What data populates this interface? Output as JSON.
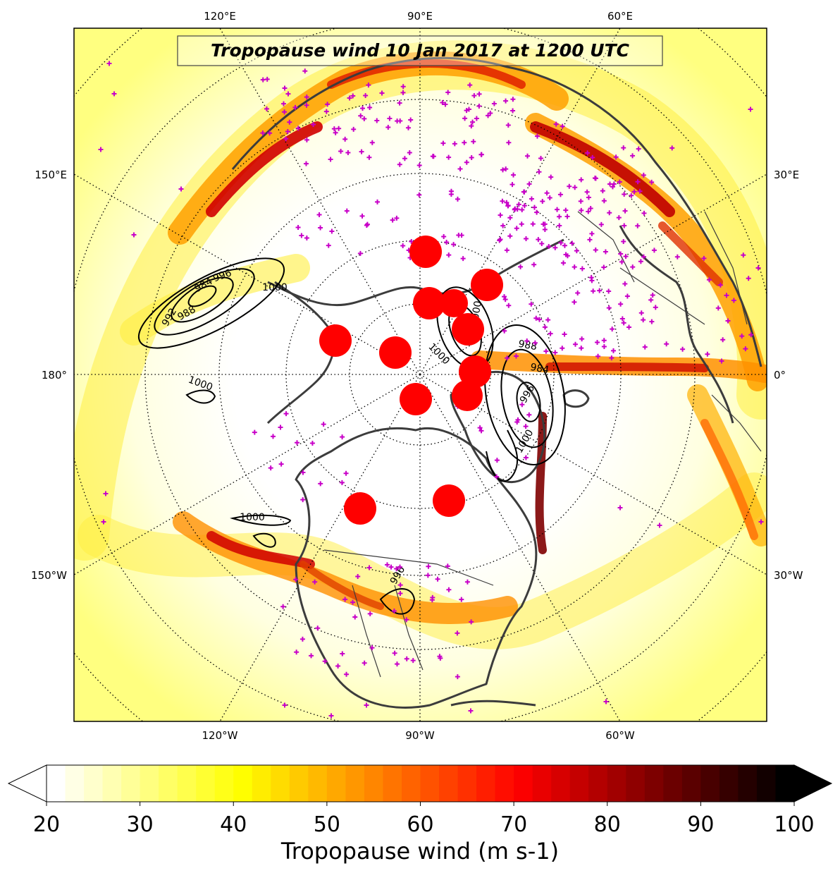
{
  "map": {
    "title": "Tropopause wind 10 Jan 2017 at 1200 UTC",
    "projection": "north-polar-stereographic",
    "central_longitude": -90,
    "lon_labels": {
      "top": [
        "120°E",
        "90°E",
        "60°E"
      ],
      "bottom": [
        "120°W",
        "90°W",
        "60°W"
      ],
      "left": [
        "150°E",
        "180°",
        "150°W"
      ],
      "right": [
        "30°E",
        "0°",
        "30°W"
      ]
    },
    "colors": {
      "coastline": "#3c3c3c",
      "graticule": "#000000",
      "station_marker": "#c800c8",
      "feature_circle": "#ff0000",
      "contour": "#000000"
    }
  },
  "colorbar": {
    "label": "Tropopause wind (m s-1)",
    "ticks": [
      "20",
      "30",
      "40",
      "50",
      "60",
      "70",
      "80",
      "90",
      "100"
    ],
    "min": 20,
    "max": 100,
    "extend": "both",
    "colormap": "hot_r"
  },
  "contour_labels": [
    "996",
    "984",
    "1000",
    "992",
    "988",
    "1000",
    "1000",
    "996",
    "988",
    "984",
    "996",
    "1000",
    "1000",
    "1000"
  ]
}
